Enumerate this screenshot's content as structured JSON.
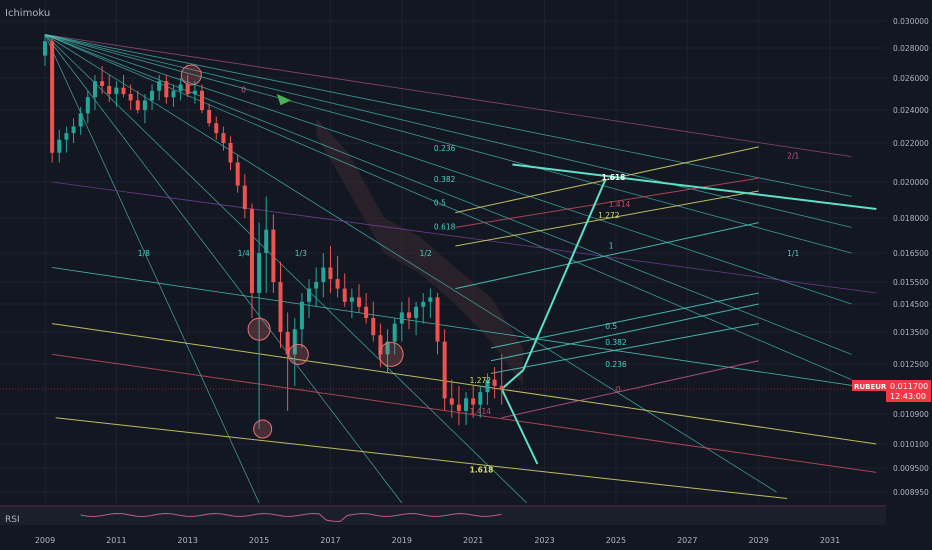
{
  "header": {
    "indicator_label": "Ichimoku"
  },
  "rsi_label": "RSI",
  "symbol_badge": {
    "symbol": "RUBEUR",
    "price": "0.011700",
    "countdown": "12:43:00",
    "color": "#f23645"
  },
  "colors": {
    "background": "#131722",
    "up": "#26a69a",
    "down": "#ef5350",
    "teal_line": "#4dd0c4",
    "pink_line": "#c2598c",
    "yellow_line": "#d9d96a",
    "red_line": "#c84a5a",
    "purple_line": "#7b3f9e",
    "grey_text": "#b2b5be"
  },
  "chart_data": {
    "type": "candlestick",
    "x_axis_labels": [
      "2009",
      "2011",
      "2013",
      "2015",
      "2017",
      "2019",
      "2021",
      "2023",
      "2025",
      "2027",
      "2029",
      "2031"
    ],
    "x_range": [
      2009,
      2032.5
    ],
    "y_axis_labels": [
      "0.030000",
      "0.028000",
      "0.026000",
      "0.024000",
      "0.022000",
      "0.020000",
      "0.018000",
      "0.016500",
      "0.015500",
      "0.014500",
      "0.013500",
      "0.012500",
      "0.010900",
      "0.010100",
      "0.009500",
      "0.008950"
    ],
    "current_price": 0.0117,
    "candles": [
      [
        2009.0,
        0.0275,
        0.029,
        0.0268,
        0.0285
      ],
      [
        2009.2,
        0.0285,
        0.0288,
        0.021,
        0.0215
      ],
      [
        2009.4,
        0.0215,
        0.0228,
        0.021,
        0.0222
      ],
      [
        2009.6,
        0.0222,
        0.023,
        0.0215,
        0.0226
      ],
      [
        2009.8,
        0.0226,
        0.0235,
        0.022,
        0.023
      ],
      [
        2010.0,
        0.023,
        0.0242,
        0.0225,
        0.0238
      ],
      [
        2010.2,
        0.0238,
        0.0252,
        0.0232,
        0.0248
      ],
      [
        2010.4,
        0.0248,
        0.0262,
        0.024,
        0.0258
      ],
      [
        2010.6,
        0.0258,
        0.0268,
        0.025,
        0.0255
      ],
      [
        2010.8,
        0.0255,
        0.0262,
        0.0245,
        0.025
      ],
      [
        2011.0,
        0.025,
        0.0258,
        0.0242,
        0.0254
      ],
      [
        2011.2,
        0.0254,
        0.0262,
        0.0248,
        0.025
      ],
      [
        2011.4,
        0.025,
        0.0256,
        0.024,
        0.0246
      ],
      [
        2011.6,
        0.0246,
        0.0252,
        0.0238,
        0.024
      ],
      [
        2011.8,
        0.024,
        0.025,
        0.0232,
        0.0246
      ],
      [
        2012.0,
        0.0246,
        0.0256,
        0.024,
        0.0252
      ],
      [
        2012.2,
        0.0252,
        0.0262,
        0.0246,
        0.0258
      ],
      [
        2012.4,
        0.0258,
        0.0262,
        0.0244,
        0.0248
      ],
      [
        2012.6,
        0.0248,
        0.0256,
        0.0242,
        0.0252
      ],
      [
        2012.8,
        0.0252,
        0.026,
        0.0246,
        0.0256
      ],
      [
        2013.0,
        0.0256,
        0.0262,
        0.0248,
        0.025
      ],
      [
        2013.2,
        0.025,
        0.0258,
        0.0244,
        0.0252
      ],
      [
        2013.4,
        0.0252,
        0.0256,
        0.0238,
        0.024
      ],
      [
        2013.6,
        0.024,
        0.0244,
        0.023,
        0.0232
      ],
      [
        2013.8,
        0.0232,
        0.0236,
        0.0222,
        0.0226
      ],
      [
        2014.0,
        0.0226,
        0.023,
        0.0216,
        0.022
      ],
      [
        2014.2,
        0.022,
        0.0224,
        0.0206,
        0.021
      ],
      [
        2014.4,
        0.021,
        0.0214,
        0.0194,
        0.0198
      ],
      [
        2014.6,
        0.0198,
        0.0204,
        0.018,
        0.0185
      ],
      [
        2014.8,
        0.0185,
        0.0188,
        0.014,
        0.015
      ],
      [
        2015.0,
        0.015,
        0.0178,
        0.0105,
        0.0165
      ],
      [
        2015.2,
        0.0165,
        0.0192,
        0.015,
        0.0175
      ],
      [
        2015.4,
        0.0175,
        0.0182,
        0.015,
        0.0155
      ],
      [
        2015.6,
        0.0155,
        0.0162,
        0.013,
        0.0135
      ],
      [
        2015.8,
        0.0135,
        0.0142,
        0.011,
        0.0128
      ],
      [
        2016.0,
        0.0128,
        0.014,
        0.0118,
        0.0136
      ],
      [
        2016.2,
        0.0136,
        0.015,
        0.013,
        0.0146
      ],
      [
        2016.4,
        0.0146,
        0.0156,
        0.014,
        0.0152
      ],
      [
        2016.6,
        0.0152,
        0.016,
        0.0144,
        0.0155
      ],
      [
        2016.8,
        0.0155,
        0.0165,
        0.0148,
        0.016
      ],
      [
        2017.0,
        0.016,
        0.0168,
        0.015,
        0.0156
      ],
      [
        2017.2,
        0.0156,
        0.0164,
        0.0148,
        0.0152
      ],
      [
        2017.4,
        0.0152,
        0.0158,
        0.0144,
        0.0146
      ],
      [
        2017.6,
        0.0146,
        0.0152,
        0.014,
        0.0148
      ],
      [
        2017.8,
        0.0148,
        0.0154,
        0.0142,
        0.0144
      ],
      [
        2018.0,
        0.0144,
        0.015,
        0.0138,
        0.014
      ],
      [
        2018.2,
        0.014,
        0.0146,
        0.0132,
        0.0134
      ],
      [
        2018.4,
        0.0134,
        0.0138,
        0.0124,
        0.0128
      ],
      [
        2018.6,
        0.0128,
        0.0136,
        0.0122,
        0.0132
      ],
      [
        2018.8,
        0.0132,
        0.014,
        0.0128,
        0.0138
      ],
      [
        2019.0,
        0.0138,
        0.0146,
        0.0132,
        0.0142
      ],
      [
        2019.2,
        0.0142,
        0.0148,
        0.0136,
        0.014
      ],
      [
        2019.4,
        0.014,
        0.0146,
        0.0134,
        0.0144
      ],
      [
        2019.6,
        0.0144,
        0.015,
        0.0138,
        0.0146
      ],
      [
        2019.8,
        0.0146,
        0.0152,
        0.014,
        0.0148
      ],
      [
        2020.0,
        0.0148,
        0.015,
        0.0128,
        0.0132
      ],
      [
        2020.2,
        0.0132,
        0.0136,
        0.011,
        0.0114
      ],
      [
        2020.4,
        0.0114,
        0.012,
        0.0108,
        0.0112
      ],
      [
        2020.6,
        0.0112,
        0.0118,
        0.0106,
        0.011
      ],
      [
        2020.8,
        0.011,
        0.0116,
        0.0106,
        0.0114
      ],
      [
        2021.0,
        0.0114,
        0.0118,
        0.0108,
        0.0112
      ],
      [
        2021.2,
        0.0112,
        0.0118,
        0.0108,
        0.0116
      ],
      [
        2021.4,
        0.0116,
        0.0122,
        0.0112,
        0.012
      ],
      [
        2021.6,
        0.012,
        0.0124,
        0.0114,
        0.0118
      ],
      [
        2021.8,
        0.0118,
        0.0128,
        0.0112,
        0.0117
      ]
    ],
    "fib_labels": [
      {
        "text": "0",
        "color": "#c2598c",
        "x": 2014.5,
        "y": 0.0251
      },
      {
        "text": "0.236",
        "color": "#4dd0c4",
        "x": 2019.9,
        "y": 0.0216
      },
      {
        "text": "0.382",
        "color": "#4dd0c4",
        "x": 2019.9,
        "y": 0.02
      },
      {
        "text": "0.5",
        "color": "#4dd0c4",
        "x": 2019.9,
        "y": 0.0187
      },
      {
        "text": "0.618",
        "color": "#4dd0c4",
        "x": 2019.9,
        "y": 0.0175
      },
      {
        "text": "1/8",
        "color": "#4dd0c4",
        "x": 2011.6,
        "y": 0.0164
      },
      {
        "text": "1/4",
        "color": "#4dd0c4",
        "x": 2014.4,
        "y": 0.0164
      },
      {
        "text": "1/3",
        "color": "#4dd0c4",
        "x": 2016.0,
        "y": 0.0164
      },
      {
        "text": "1/2",
        "color": "#4dd0c4",
        "x": 2019.5,
        "y": 0.0164
      },
      {
        "text": "1/1",
        "color": "#4dd0c4",
        "x": 2029.8,
        "y": 0.0164
      },
      {
        "text": "2/1",
        "color": "#c2598c",
        "x": 2029.8,
        "y": 0.0212
      },
      {
        "text": "1.618",
        "color": "#ffffff",
        "x": 2024.6,
        "y": 0.0201
      },
      {
        "text": "1.414",
        "color": "#c84a5a",
        "x": 2024.8,
        "y": 0.0186
      },
      {
        "text": "1.272",
        "color": "#d9d96a",
        "x": 2024.5,
        "y": 0.018
      },
      {
        "text": "1",
        "color": "#4dd0c4",
        "x": 2024.8,
        "y": 0.0167
      },
      {
        "text": "0.5",
        "color": "#4dd0c4",
        "x": 2024.7,
        "y": 0.0136
      },
      {
        "text": "0.382",
        "color": "#4dd0c4",
        "x": 2024.7,
        "y": 0.0131
      },
      {
        "text": "0.236",
        "color": "#4dd0c4",
        "x": 2024.7,
        "y": 0.0124
      },
      {
        "text": "0",
        "color": "#c84a5a",
        "x": 2025.0,
        "y": 0.0116
      },
      {
        "text": "1.272",
        "color": "#d9d96a",
        "x": 2020.9,
        "y": 0.0119
      },
      {
        "text": "1.414",
        "color": "#c84a5a",
        "x": 2020.9,
        "y": 0.0109
      },
      {
        "text": "1.618",
        "color": "#d9d96a",
        "x": 2020.9,
        "y": 0.0094
      }
    ]
  }
}
